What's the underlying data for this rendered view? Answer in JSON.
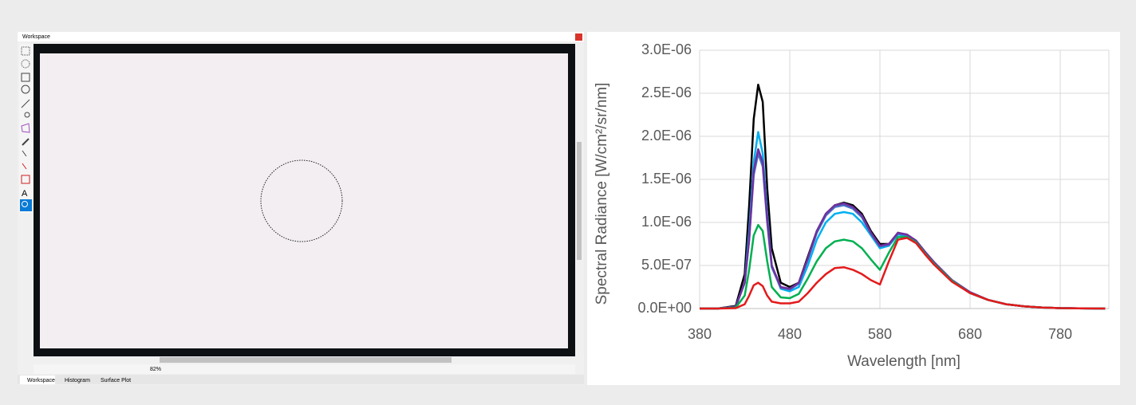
{
  "workspace": {
    "title": "Workspace",
    "zoom": "82%",
    "tabs": [
      "Workspace",
      "Histogram",
      "Surface Plot"
    ]
  },
  "chart_data": {
    "type": "line",
    "x_label": "Wavelength [nm]",
    "y_label": "Spectral Radiance [W/cm²/sr/nm]",
    "x": [
      380,
      400,
      420,
      430,
      435,
      440,
      445,
      450,
      455,
      460,
      470,
      480,
      490,
      500,
      510,
      520,
      530,
      540,
      550,
      560,
      570,
      580,
      590,
      600,
      610,
      620,
      630,
      640,
      660,
      680,
      700,
      720,
      740,
      760,
      780,
      800,
      830
    ],
    "series": [
      {
        "color": "#000000",
        "values": [
          0,
          0,
          3e-08,
          4e-07,
          1.2e-06,
          2.2e-06,
          2.6e-06,
          2.4e-06,
          1.4e-06,
          7e-07,
          3e-07,
          2.5e-07,
          3e-07,
          6e-07,
          9e-07,
          1.1e-06,
          1.2e-06,
          1.23e-06,
          1.2e-06,
          1.1e-06,
          9e-07,
          7.5e-07,
          7.5e-07,
          8.8e-07,
          8.5e-07,
          7.8e-07,
          6.5e-07,
          5.3e-07,
          3.2e-07,
          1.8e-07,
          1e-07,
          5e-08,
          2.5e-08,
          1.2e-08,
          5e-09,
          2e-09,
          0
        ]
      },
      {
        "color": "#00b0f0",
        "values": [
          0,
          0,
          2e-08,
          3e-07,
          9e-07,
          1.7e-06,
          2.05e-06,
          1.8e-06,
          1.1e-06,
          5e-07,
          2.3e-07,
          2e-07,
          2.5e-07,
          5e-07,
          8e-07,
          1e-06,
          1.1e-06,
          1.12e-06,
          1.1e-06,
          1e-06,
          8.5e-07,
          7e-07,
          7.3e-07,
          8.6e-07,
          8.4e-07,
          7.7e-07,
          6.4e-07,
          5.2e-07,
          3.2e-07,
          1.8e-07,
          1e-07,
          5e-08,
          2.5e-08,
          1.2e-08,
          5e-09,
          2e-09,
          0
        ]
      },
      {
        "color": "#4472c4",
        "values": [
          0,
          0,
          2e-08,
          3e-07,
          8e-07,
          1.55e-06,
          1.8e-06,
          1.65e-06,
          1e-06,
          4.8e-07,
          2.4e-07,
          2.2e-07,
          2.9e-07,
          5.7e-07,
          8.8e-07,
          1.08e-06,
          1.18e-06,
          1.2e-06,
          1.16e-06,
          1.06e-06,
          8.7e-07,
          7.2e-07,
          7.4e-07,
          8.7e-07,
          8.5e-07,
          7.8e-07,
          6.5e-07,
          5.3e-07,
          3.3e-07,
          1.9e-07,
          1e-07,
          5e-08,
          2.5e-08,
          1.2e-08,
          5e-09,
          2e-09,
          0
        ]
      },
      {
        "color": "#7030a0",
        "values": [
          0,
          0,
          2e-08,
          3e-07,
          8e-07,
          1.6e-06,
          1.85e-06,
          1.7e-06,
          1.05e-06,
          5e-07,
          2.5e-07,
          2.3e-07,
          3e-07,
          5.8e-07,
          9e-07,
          1.1e-06,
          1.2e-06,
          1.22e-06,
          1.18e-06,
          1.08e-06,
          8.8e-07,
          7.3e-07,
          7.5e-07,
          8.8e-07,
          8.6e-07,
          7.9e-07,
          6.6e-07,
          5.4e-07,
          3.3e-07,
          1.9e-07,
          1e-07,
          5e-08,
          2.5e-08,
          1.2e-08,
          5e-09,
          2e-09,
          0
        ]
      },
      {
        "color": "#00b050",
        "values": [
          0,
          0,
          1e-08,
          1.5e-07,
          4.5e-07,
          8.5e-07,
          9.7e-07,
          9e-07,
          5.5e-07,
          2.5e-07,
          1.3e-07,
          1.2e-07,
          1.7e-07,
          3.5e-07,
          5.5e-07,
          7e-07,
          7.8e-07,
          8e-07,
          7.8e-07,
          7e-07,
          5.7e-07,
          4.5e-07,
          6.5e-07,
          8.3e-07,
          8.3e-07,
          7.7e-07,
          6.4e-07,
          5.2e-07,
          3.2e-07,
          1.8e-07,
          1e-07,
          5e-08,
          2.5e-08,
          1.2e-08,
          5e-09,
          2e-09,
          0
        ]
      },
      {
        "color": "#e31a1c",
        "values": [
          0,
          0,
          5e-09,
          5e-08,
          1.5e-07,
          2.7e-07,
          3e-07,
          2.6e-07,
          1.5e-07,
          8e-08,
          6e-08,
          6e-08,
          8e-08,
          1.8e-07,
          3e-07,
          4e-07,
          4.7e-07,
          4.8e-07,
          4.5e-07,
          4e-07,
          3.3e-07,
          2.8e-07,
          5.5e-07,
          8e-07,
          8.2e-07,
          7.6e-07,
          6.3e-07,
          5.1e-07,
          3.1e-07,
          1.8e-07,
          1e-07,
          5e-08,
          2.5e-08,
          1.2e-08,
          5e-09,
          2e-09,
          0
        ]
      }
    ],
    "xlim": [
      380,
      834
    ],
    "xticks": [
      380,
      480,
      580,
      680,
      780
    ],
    "ylim": [
      0,
      3e-06
    ],
    "yticks": [
      {
        "value": 0,
        "label": "0.0E+00"
      },
      {
        "value": 5e-07,
        "label": "5.0E-07"
      },
      {
        "value": 1e-06,
        "label": "1.0E-06"
      },
      {
        "value": 1.5e-06,
        "label": "1.5E-06"
      },
      {
        "value": 2e-06,
        "label": "2.0E-06"
      },
      {
        "value": 2.5e-06,
        "label": "2.5E-06"
      },
      {
        "value": 3e-06,
        "label": "3.0E-06"
      }
    ],
    "grid": true
  }
}
